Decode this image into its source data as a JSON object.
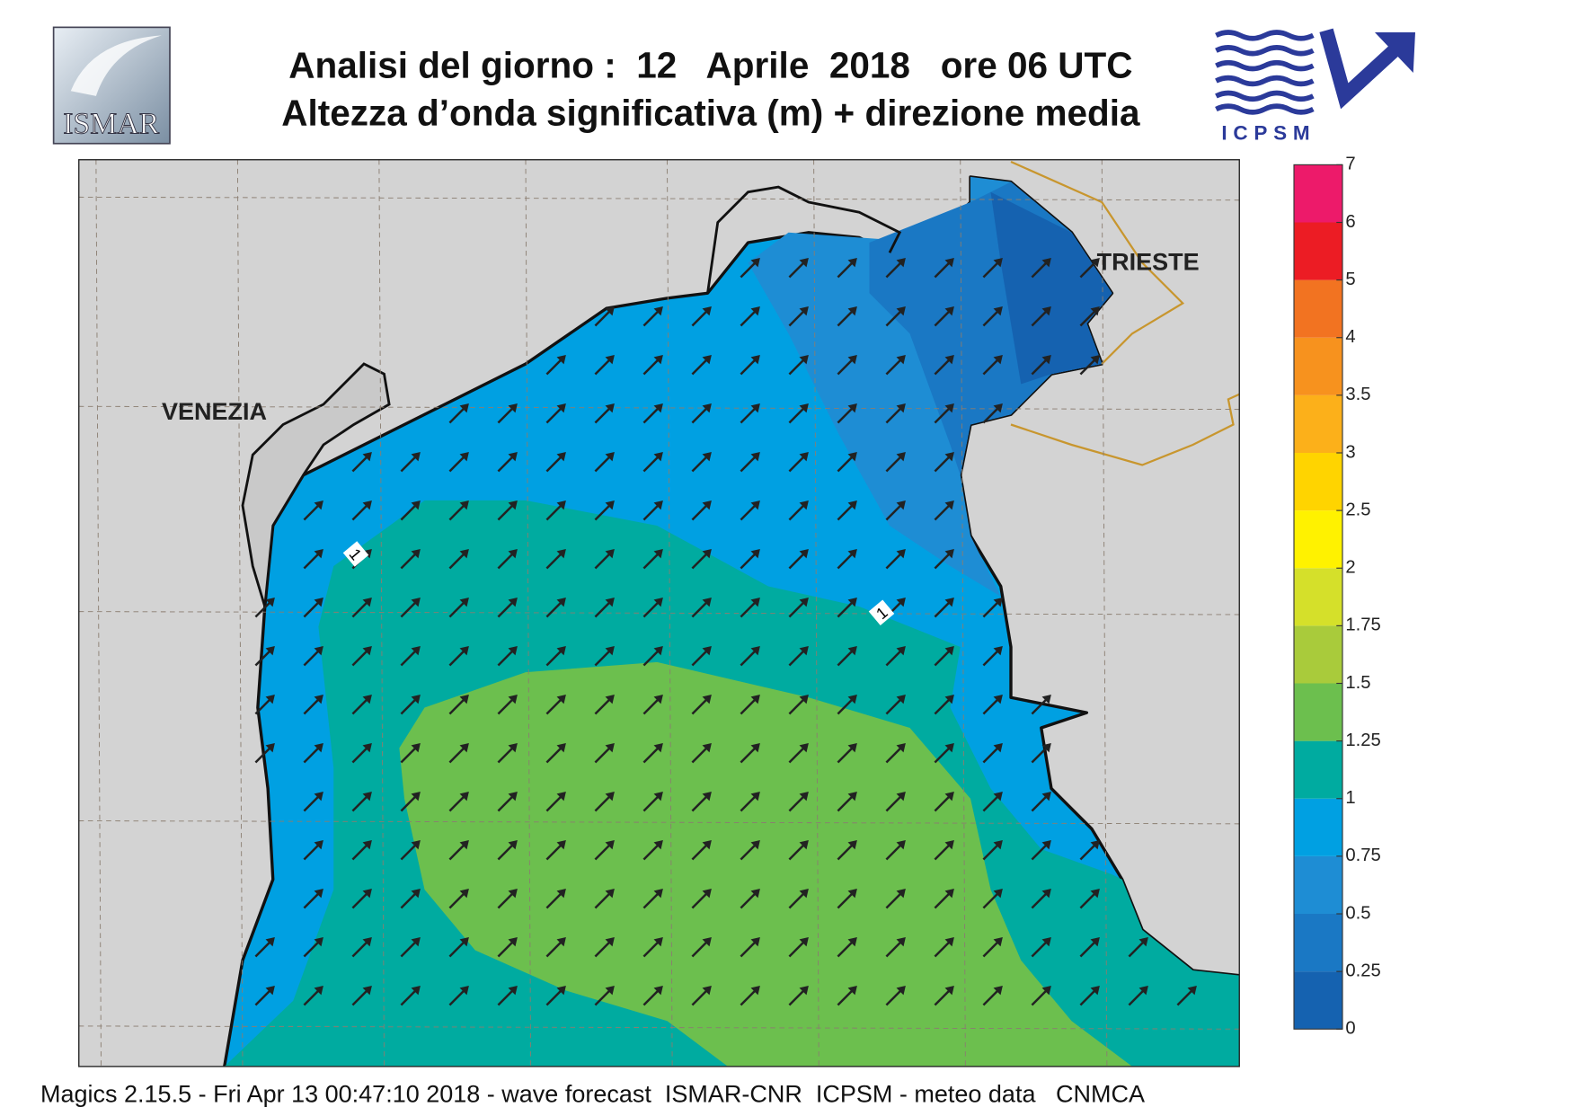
{
  "header": {
    "title_line1": "Analisi del giorno :  12   Aprile  2018   ore 06 UTC",
    "title_line2": "Altezza d’onda significativa (m) + direzione media"
  },
  "logos": {
    "left": "ISMAR",
    "right": "ICPSM"
  },
  "map": {
    "place_labels": [
      "VENEZIA",
      "TRIESTE"
    ],
    "contour_labels": [
      "1",
      "1"
    ]
  },
  "colorbar": {
    "levels": [
      0,
      0.25,
      0.5,
      0.75,
      1,
      1.25,
      1.5,
      1.75,
      2,
      2.5,
      3,
      3.5,
      4,
      5,
      6,
      7
    ],
    "colors": [
      "#1562b0",
      "#1a78c4",
      "#1e8dd4",
      "#00a0e2",
      "#00aba0",
      "#6cbf4e",
      "#a9cb3b",
      "#d5e02a",
      "#fff200",
      "#ffd400",
      "#fcb01a",
      "#f7921e",
      "#f27321",
      "#ec1c24",
      "#ed1a6a"
    ]
  },
  "footer": "Magics 2.15.5 - Fri Apr 13 00:47:10 2018 - wave forecast  ISMAR-CNR  ICPSM - meteo data   CNMCA"
}
